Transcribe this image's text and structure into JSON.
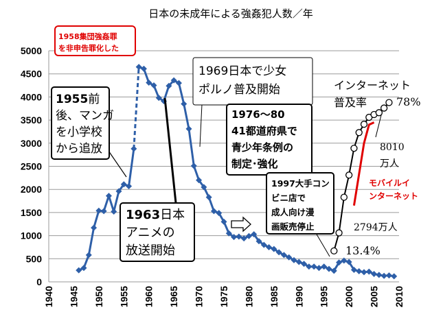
{
  "chart_data": {
    "type": "line",
    "title": "日本の未成年による強姦犯人数／年",
    "xlabel": "",
    "ylabel": "",
    "xlim": [
      1940,
      2010
    ],
    "ylim": [
      0,
      5000
    ],
    "x_ticks": [
      "1940",
      "1945",
      "1950",
      "1955",
      "1960",
      "1965",
      "1970",
      "1975",
      "1980",
      "1985",
      "1990",
      "1995",
      "2000",
      "2005",
      "2010"
    ],
    "y_ticks": [
      "0",
      "500",
      "1000",
      "1500",
      "2000",
      "2500",
      "3000",
      "3500",
      "4000",
      "4500",
      "5000"
    ],
    "grid": "horizontal",
    "series": [
      {
        "color": "#2e5fa8",
        "points": [
          [
            1946,
            250
          ],
          [
            1947,
            300
          ],
          [
            1948,
            580
          ],
          [
            1949,
            1170
          ],
          [
            1950,
            1540
          ],
          [
            1951,
            1530
          ],
          [
            1952,
            1860
          ],
          [
            1953,
            1520
          ],
          [
            1954,
            1960
          ],
          [
            1955,
            2110
          ],
          [
            1956,
            2070
          ],
          [
            1957,
            2880
          ],
          [
            1958,
            4650
          ],
          [
            1959,
            4610
          ],
          [
            1960,
            4310
          ],
          [
            1961,
            4250
          ],
          [
            1962,
            3980
          ],
          [
            1963,
            3910
          ],
          [
            1964,
            4240
          ],
          [
            1965,
            4360
          ],
          [
            1966,
            4300
          ],
          [
            1967,
            3850
          ],
          [
            1968,
            3310
          ],
          [
            1969,
            2510
          ],
          [
            1970,
            2200
          ],
          [
            1971,
            2050
          ],
          [
            1972,
            1830
          ],
          [
            1973,
            1530
          ],
          [
            1974,
            1490
          ],
          [
            1975,
            1300
          ],
          [
            1976,
            1050
          ],
          [
            1977,
            970
          ],
          [
            1978,
            980
          ],
          [
            1979,
            940
          ],
          [
            1980,
            990
          ],
          [
            1981,
            1030
          ],
          [
            1982,
            880
          ],
          [
            1983,
            800
          ],
          [
            1984,
            750
          ],
          [
            1985,
            710
          ],
          [
            1986,
            640
          ],
          [
            1987,
            580
          ],
          [
            1988,
            530
          ],
          [
            1989,
            470
          ],
          [
            1990,
            430
          ],
          [
            1991,
            390
          ],
          [
            1992,
            330
          ],
          [
            1993,
            330
          ],
          [
            1994,
            300
          ],
          [
            1995,
            330
          ],
          [
            1996,
            280
          ],
          [
            1997,
            240
          ],
          [
            1998,
            420
          ],
          [
            1999,
            460
          ],
          [
            2000,
            430
          ],
          [
            2001,
            260
          ],
          [
            2002,
            230
          ],
          [
            2003,
            210
          ],
          [
            2004,
            220
          ],
          [
            2005,
            170
          ],
          [
            2006,
            150
          ],
          [
            2007,
            130
          ],
          [
            2008,
            140
          ],
          [
            2009,
            120
          ]
        ],
        "dashed_segment": [
          1957,
          1958
        ]
      },
      {
        "color": "#000000",
        "marker": "open-circle",
        "points": [
          [
            1997,
            670
          ],
          [
            1998,
            1060
          ],
          [
            1999,
            1830
          ],
          [
            2000,
            2310
          ],
          [
            2001,
            2890
          ],
          [
            2002,
            3230
          ],
          [
            2003,
            3410
          ],
          [
            2004,
            3560
          ],
          [
            2005,
            3620
          ],
          [
            2006,
            3660
          ],
          [
            2007,
            3760
          ],
          [
            2008,
            3880
          ]
        ]
      },
      {
        "color": "#e00000",
        "points": [
          [
            2001,
            1650
          ],
          [
            2003,
            3000
          ],
          [
            2004,
            3400
          ],
          [
            2005,
            3450
          ]
        ]
      }
    ],
    "annotations": {
      "a1958": "1958集団強姦罪を非申告罪化した",
      "a1955": "1955前後、マンガを小学校から追放",
      "a1963": "1963日本アニメの放送開始",
      "a1969": "1969日本で少女ポルノ普及開始",
      "a1976": "1976～80 41都道府県で青少年条例の制定･強化",
      "a1997": "1997大手コンビニ店で成人向け漫画販売停止",
      "internet_label": "インターネット普及率",
      "pct_78": "78%",
      "pct_134": "13.4%",
      "users_8010": "8010万人",
      "users_2794": "2794万人",
      "mobile_label": "モバイルインターネット"
    }
  }
}
